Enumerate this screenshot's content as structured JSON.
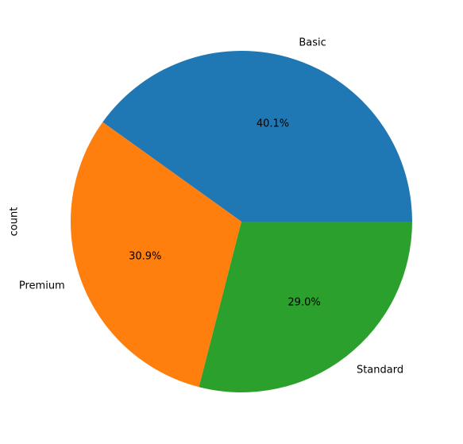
{
  "chart_data": {
    "type": "pie",
    "ylabel": "count",
    "categories": [
      "Basic",
      "Premium",
      "Standard"
    ],
    "values": [
      40.1,
      30.9,
      29.0
    ],
    "value_labels": [
      "40.1%",
      "30.9%",
      "29.0%"
    ],
    "colors": [
      "#1f77b4",
      "#ff7f0e",
      "#2ca02c"
    ]
  }
}
